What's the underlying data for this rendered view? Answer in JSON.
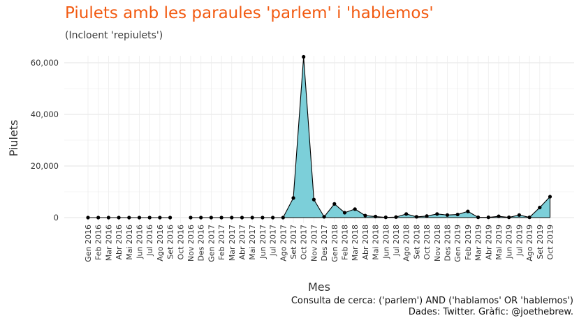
{
  "chart_data": {
    "type": "area",
    "title": "Piulets amb les paraules 'parlem' i 'hablemos'",
    "subtitle": "(Incloent 'repiulets')",
    "xlabel": "Mes",
    "ylabel": "Piulets",
    "ylim": [
      0,
      65000
    ],
    "yticks": [
      "0",
      "20,000",
      "40,000",
      "60,000"
    ],
    "ytick_values": [
      0,
      20000,
      40000,
      60000
    ],
    "grid": true,
    "colors": {
      "fill": "#7ccfd9",
      "line": "#000000",
      "point": "#000000",
      "grid": "#e3e3e3"
    },
    "categories": [
      "Gen 2016",
      "Feb 2016",
      "Mar 2016",
      "Abr 2016",
      "Mai 2016",
      "Jun 2016",
      "Jul 2016",
      "Ago 2016",
      "Set 2016",
      "Oct 2016",
      "Nov 2016",
      "Des 2016",
      "Gen 2017",
      "Feb 2017",
      "Mar 2017",
      "Abr 2017",
      "Mai 2017",
      "Jun 2017",
      "Jul 2017",
      "Ago 2017",
      "Set 2017",
      "Oct 2017",
      "Nov 2017",
      "Des 2017",
      "Gen 2018",
      "Feb 2018",
      "Mar 2018",
      "Abr 2018",
      "Mai 2018",
      "Jun 2018",
      "Jul 2018",
      "Ago 2018",
      "Set 2018",
      "Oct 2018",
      "Nov 2018",
      "Des 2018",
      "Gen 2019",
      "Feb 2019",
      "Mar 2019",
      "Abr 2019",
      "Mai 2019",
      "Jun 2019",
      "Jul 2019",
      "Ago 2019",
      "Set 2019",
      "Oct 2019"
    ],
    "values": [
      0,
      0,
      0,
      0,
      0,
      0,
      0,
      0,
      0,
      null,
      0,
      0,
      0,
      0,
      0,
      0,
      0,
      0,
      0,
      0,
      7600,
      62300,
      7000,
      300,
      5300,
      1900,
      3300,
      800,
      400,
      100,
      200,
      1400,
      300,
      600,
      1400,
      1000,
      1200,
      2400,
      100,
      100,
      500,
      100,
      1000,
      100,
      3900,
      8100
    ]
  },
  "caption": {
    "line1": "Consulta de cerca: ('parlem') AND ('hablamos' OR 'hablemos')",
    "line2": "Dades: Twitter. Gràfic: @joethebrew."
  }
}
